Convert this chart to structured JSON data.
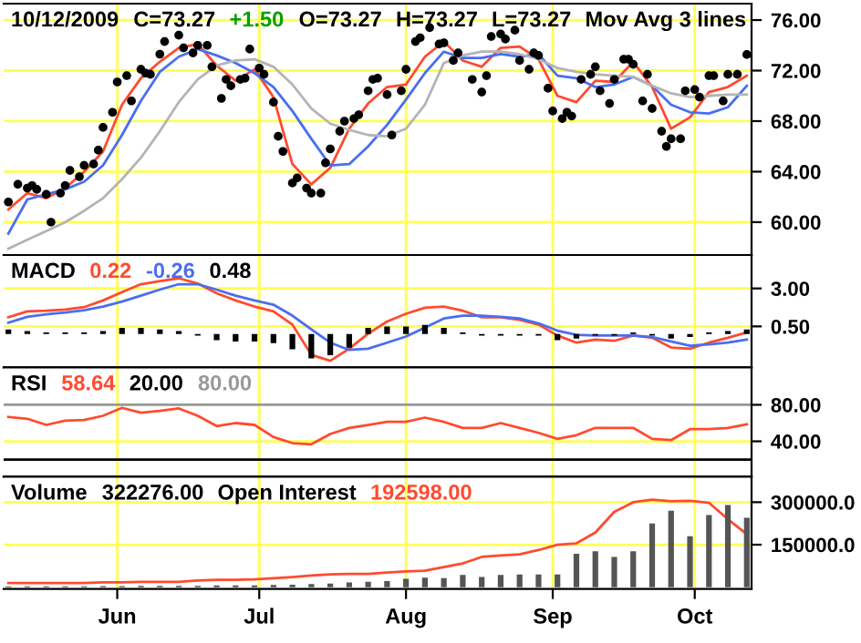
{
  "chart_data": [
    {
      "type": "scatter",
      "title": "10/12/2009",
      "annotations": [
        "C=73.27",
        "+1.50",
        "O=73.27",
        "H=73.27",
        "L=73.27",
        "Mov Avg 3 lines"
      ],
      "x": [
        "2009-05-09",
        "2009-05-13",
        "2009-05-17",
        "2009-05-21",
        "2009-05-25",
        "2009-05-29",
        "2009-06-02",
        "2009-06-06",
        "2009-06-10",
        "2009-06-14",
        "2009-06-18",
        "2009-06-22",
        "2009-06-26",
        "2009-06-30",
        "2009-07-04",
        "2009-07-08",
        "2009-07-12",
        "2009-07-16",
        "2009-07-20",
        "2009-07-24",
        "2009-07-28",
        "2009-08-01",
        "2009-08-05",
        "2009-08-09",
        "2009-08-13",
        "2009-08-17",
        "2009-08-21",
        "2009-08-25",
        "2009-08-29",
        "2009-09-02",
        "2009-09-06",
        "2009-09-10",
        "2009-09-14",
        "2009-09-18",
        "2009-09-22",
        "2009-09-26",
        "2009-09-30",
        "2009-10-04",
        "2009-10-08",
        "2009-10-12"
      ],
      "series": [
        {
          "color": "#000000",
          "marker": "circle",
          "x": [
            "2009-05-09",
            "2009-05-11",
            "2009-05-13",
            "2009-05-14",
            "2009-05-15",
            "2009-05-17",
            "2009-05-18",
            "2009-05-20",
            "2009-05-21",
            "2009-05-22",
            "2009-05-24",
            "2009-05-25",
            "2009-05-27",
            "2009-05-28",
            "2009-05-29",
            "2009-05-31",
            "2009-06-01",
            "2009-06-03",
            "2009-06-04",
            "2009-06-06",
            "2009-06-07",
            "2009-06-08",
            "2009-06-10",
            "2009-06-11",
            "2009-06-14",
            "2009-06-15",
            "2009-06-17",
            "2009-06-18",
            "2009-06-20",
            "2009-06-21",
            "2009-06-23",
            "2009-06-24",
            "2009-06-25",
            "2009-06-27",
            "2009-06-28",
            "2009-06-29",
            "2009-07-01",
            "2009-07-02",
            "2009-07-04",
            "2009-07-05",
            "2009-07-06",
            "2009-07-08",
            "2009-07-09",
            "2009-07-11",
            "2009-07-12",
            "2009-07-14",
            "2009-07-15",
            "2009-07-16",
            "2009-07-18",
            "2009-07-19",
            "2009-07-21",
            "2009-07-22",
            "2009-07-24",
            "2009-07-25",
            "2009-07-26",
            "2009-07-28",
            "2009-07-29",
            "2009-07-31",
            "2009-08-01",
            "2009-08-03",
            "2009-08-04",
            "2009-08-06",
            "2009-08-08",
            "2009-08-09",
            "2009-08-11",
            "2009-08-12",
            "2009-08-15",
            "2009-08-17",
            "2009-08-18",
            "2009-08-19",
            "2009-08-21",
            "2009-08-22",
            "2009-08-24",
            "2009-08-25",
            "2009-08-27",
            "2009-08-28",
            "2009-08-29",
            "2009-08-31",
            "2009-09-01",
            "2009-09-03",
            "2009-09-04",
            "2009-09-05",
            "2009-09-07",
            "2009-09-09",
            "2009-09-10",
            "2009-09-11",
            "2009-09-13",
            "2009-09-14",
            "2009-09-16",
            "2009-09-17",
            "2009-09-18",
            "2009-09-20",
            "2009-09-21",
            "2009-09-22",
            "2009-09-24",
            "2009-09-25",
            "2009-09-26",
            "2009-09-28",
            "2009-09-29",
            "2009-10-01",
            "2009-10-02",
            "2009-10-04",
            "2009-10-05",
            "2009-10-07",
            "2009-10-08",
            "2009-10-10",
            "2009-10-12"
          ],
          "values": [
            61.6,
            63.0,
            62.7,
            62.9,
            62.6,
            62.2,
            60.0,
            62.3,
            62.9,
            64.1,
            63.6,
            64.5,
            64.6,
            65.7,
            67.5,
            68.7,
            71.1,
            71.6,
            69.6,
            72.1,
            71.8,
            71.7,
            73.3,
            74.3,
            74.8,
            73.8,
            73.4,
            74.0,
            74.0,
            72.3,
            69.8,
            71.3,
            70.8,
            71.3,
            71.4,
            73.7,
            72.2,
            71.7,
            69.5,
            66.8,
            65.6,
            63.1,
            63.5,
            62.7,
            62.3,
            62.3,
            64.7,
            65.8,
            67.2,
            68.0,
            68.2,
            68.5,
            70.4,
            71.3,
            71.4,
            70.1,
            66.9,
            70.4,
            72.1,
            74.3,
            74.6,
            75.4,
            74.1,
            74.2,
            72.8,
            73.4,
            71.3,
            70.3,
            71.6,
            74.7,
            74.9,
            74.5,
            75.2,
            72.8,
            72.1,
            73.4,
            73.2,
            70.6,
            68.8,
            68.2,
            68.7,
            68.4,
            71.3,
            71.7,
            72.3,
            70.4,
            69.4,
            71.3,
            72.9,
            72.9,
            72.5,
            69.6,
            71.7,
            69.0,
            67.2,
            66.0,
            66.6,
            66.6,
            70.4,
            70.5,
            69.9,
            71.6,
            71.6,
            69.6,
            71.7,
            71.7,
            73.27
          ]
        },
        {
          "type": "line",
          "color": "#ff4b2e",
          "values": [
            61.0,
            62.3,
            61.9,
            62.7,
            64.0,
            65.6,
            69.3,
            71.4,
            72.7,
            73.8,
            74.1,
            72.4,
            71.2,
            72.1,
            69.9,
            64.6,
            63.0,
            64.3,
            67.4,
            69.4,
            70.7,
            70.9,
            73.1,
            74.3,
            72.8,
            72.3,
            73.8,
            73.9,
            72.9,
            70.0,
            69.5,
            71.2,
            71.1,
            72.7,
            70.7,
            67.4,
            68.3,
            70.3,
            70.7,
            71.6
          ]
        },
        {
          "type": "line",
          "color": "#4a6ef0",
          "values": [
            59.1,
            61.8,
            62.2,
            62.6,
            63.2,
            64.5,
            66.9,
            69.6,
            71.9,
            73.1,
            73.7,
            73.2,
            72.6,
            71.8,
            70.7,
            68.8,
            66.6,
            64.5,
            64.6,
            66.0,
            67.7,
            69.7,
            71.8,
            73.5,
            73.0,
            73.0,
            73.3,
            73.1,
            73.3,
            71.6,
            71.4,
            70.7,
            70.9,
            71.5,
            70.8,
            69.3,
            68.7,
            68.6,
            69.1,
            70.8
          ]
        },
        {
          "type": "line",
          "color": "#b4b4b4",
          "values": [
            57.9,
            58.6,
            59.3,
            60.0,
            60.9,
            61.9,
            63.4,
            65.1,
            67.2,
            69.5,
            71.3,
            72.4,
            72.8,
            72.9,
            72.3,
            70.9,
            69.0,
            67.8,
            67.3,
            66.9,
            66.8,
            67.4,
            69.3,
            72.6,
            73.2,
            73.5,
            73.5,
            73.3,
            72.9,
            72.2,
            71.9,
            71.7,
            71.6,
            71.5,
            70.8,
            70.2,
            69.9,
            70.0,
            70.1,
            70.1
          ]
        }
      ],
      "xlim": [
        "2009-05-08",
        "2009-10-13"
      ],
      "ylim": [
        57.4,
        77.3
      ],
      "xticks": [
        {
          "value": "2009-06-01",
          "label": null
        },
        {
          "value": "2009-07-01",
          "label": null
        },
        {
          "value": "2009-08-01",
          "label": null
        },
        {
          "value": "2009-09-01",
          "label": null
        },
        {
          "value": "2009-10-01",
          "label": null
        }
      ],
      "yticks": [
        {
          "value": 60,
          "label": "60.00"
        },
        {
          "value": 64,
          "label": "64.00"
        },
        {
          "value": 68,
          "label": "68.00"
        },
        {
          "value": 72,
          "label": "72.00"
        },
        {
          "value": 76,
          "label": "76.00"
        }
      ],
      "tick_labels": "y",
      "grid": true
    },
    {
      "type": "line",
      "title": "MACD",
      "annotations": [
        "0.22",
        "-0.26",
        "0.48"
      ],
      "x": [
        "2009-05-09",
        "2009-05-13",
        "2009-05-17",
        "2009-05-21",
        "2009-05-25",
        "2009-05-29",
        "2009-06-02",
        "2009-06-06",
        "2009-06-10",
        "2009-06-14",
        "2009-06-18",
        "2009-06-22",
        "2009-06-26",
        "2009-06-30",
        "2009-07-04",
        "2009-07-08",
        "2009-07-12",
        "2009-07-16",
        "2009-07-20",
        "2009-07-24",
        "2009-07-28",
        "2009-08-01",
        "2009-08-05",
        "2009-08-09",
        "2009-08-13",
        "2009-08-17",
        "2009-08-21",
        "2009-08-25",
        "2009-08-29",
        "2009-09-02",
        "2009-09-06",
        "2009-09-10",
        "2009-09-14",
        "2009-09-18",
        "2009-09-22",
        "2009-09-26",
        "2009-09-30",
        "2009-10-04",
        "2009-10-08",
        "2009-10-12"
      ],
      "series": [
        {
          "color": "#ff4b2e",
          "values": [
            1.1,
            1.49,
            1.53,
            1.61,
            1.77,
            2.21,
            2.76,
            3.28,
            3.48,
            3.67,
            3.32,
            2.68,
            2.21,
            1.81,
            1.49,
            0.62,
            -1.37,
            -1.76,
            -0.97,
            0.02,
            0.82,
            1.33,
            1.73,
            1.81,
            1.53,
            1.1,
            1.1,
            0.94,
            0.62,
            -0.1,
            -0.57,
            -0.37,
            -0.45,
            -0.1,
            -0.25,
            -0.89,
            -0.97,
            -0.57,
            -0.25,
            0.1
          ]
        },
        {
          "color": "#4a6ef0",
          "values": [
            0.74,
            1.13,
            1.29,
            1.41,
            1.57,
            1.81,
            2.13,
            2.52,
            2.92,
            3.28,
            3.28,
            2.92,
            2.52,
            2.21,
            1.93,
            1.21,
            0.3,
            -0.57,
            -1.05,
            -0.97,
            -0.57,
            -0.17,
            0.42,
            1.02,
            1.21,
            1.21,
            1.13,
            1.02,
            0.7,
            0.22,
            -0.06,
            -0.1,
            -0.1,
            -0.1,
            -0.21,
            -0.49,
            -0.77,
            -0.69,
            -0.57,
            -0.37
          ]
        },
        {
          "type": "bar",
          "color": "#000000",
          "values": [
            0.3,
            0.2,
            0.1,
            0.1,
            0.1,
            0.2,
            0.4,
            0.4,
            0.3,
            0.2,
            -0.1,
            -0.4,
            -0.5,
            -0.5,
            -0.6,
            -1.0,
            -1.6,
            -1.4,
            -0.9,
            0.4,
            0.5,
            0.5,
            0.6,
            0.4,
            0.1,
            -0.1,
            -0.1,
            -0.1,
            -0.1,
            -0.4,
            -0.3,
            -0.1,
            -0.1,
            0.1,
            -0.1,
            -0.3,
            -0.2,
            0.1,
            0.2,
            0.3
          ]
        }
      ],
      "xlim": [
        "2009-05-08",
        "2009-10-13"
      ],
      "ylim": [
        -2.2,
        5.2
      ],
      "xticks": [
        {
          "value": "2009-06-01",
          "label": null
        },
        {
          "value": "2009-07-01",
          "label": null
        },
        {
          "value": "2009-08-01",
          "label": null
        },
        {
          "value": "2009-09-01",
          "label": null
        },
        {
          "value": "2009-10-01",
          "label": null
        }
      ],
      "yticks": [
        {
          "value": 0.5,
          "label": "0.50"
        },
        {
          "value": 3,
          "label": "3.00"
        }
      ],
      "tick_labels": "y",
      "grid": true
    },
    {
      "type": "line",
      "title": "RSI",
      "annotations": [
        "58.64"
      ],
      "x": [
        "2009-05-09",
        "2009-05-13",
        "2009-05-17",
        "2009-05-21",
        "2009-05-25",
        "2009-05-29",
        "2009-06-02",
        "2009-06-06",
        "2009-06-10",
        "2009-06-14",
        "2009-06-18",
        "2009-06-22",
        "2009-06-26",
        "2009-06-30",
        "2009-07-04",
        "2009-07-08",
        "2009-07-12",
        "2009-07-16",
        "2009-07-20",
        "2009-07-24",
        "2009-07-28",
        "2009-08-01",
        "2009-08-05",
        "2009-08-09",
        "2009-08-13",
        "2009-08-17",
        "2009-08-21",
        "2009-08-25",
        "2009-08-29",
        "2009-09-02",
        "2009-09-06",
        "2009-09-10",
        "2009-09-14",
        "2009-09-18",
        "2009-09-22",
        "2009-09-26",
        "2009-09-30",
        "2009-10-04",
        "2009-10-08",
        "2009-10-12"
      ],
      "series": [
        {
          "color": "#ff4b2e",
          "values": [
            66.7,
            64.7,
            58.0,
            62.7,
            63.3,
            68.0,
            76.7,
            71.3,
            73.3,
            76.0,
            68.0,
            56.7,
            60.0,
            58.0,
            44.7,
            38.0,
            36.7,
            48.0,
            54.7,
            58.0,
            61.3,
            61.3,
            66.0,
            61.3,
            54.7,
            54.7,
            60.0,
            54.7,
            49.3,
            42.7,
            46.7,
            54.7,
            54.7,
            54.7,
            42.7,
            41.3,
            53.3,
            53.3,
            54.7,
            58.64
          ]
        }
      ],
      "ref_lines": [
        {
          "axis": "y",
          "value": 20,
          "label": "20.00",
          "color": "#000000"
        },
        {
          "axis": "y",
          "value": 80,
          "label": "80.00",
          "color": "#999999"
        }
      ],
      "xlim": [
        "2009-05-08",
        "2009-10-13"
      ],
      "ylim": [
        1.2,
        121
      ],
      "xticks": [
        {
          "value": "2009-06-01",
          "label": null
        },
        {
          "value": "2009-07-01",
          "label": null
        },
        {
          "value": "2009-08-01",
          "label": null
        },
        {
          "value": "2009-09-01",
          "label": null
        },
        {
          "value": "2009-10-01",
          "label": null
        }
      ],
      "yticks": [
        {
          "value": 40,
          "label": "40.00"
        },
        {
          "value": 80,
          "label": "80.00"
        }
      ],
      "tick_labels": "y",
      "grid": true
    },
    {
      "type": "bar",
      "title": "Volume",
      "annotations": [
        "322276.00",
        "Open Interest",
        "192598.00"
      ],
      "x": [
        "2009-05-09",
        "2009-05-13",
        "2009-05-17",
        "2009-05-21",
        "2009-05-25",
        "2009-05-29",
        "2009-06-02",
        "2009-06-06",
        "2009-06-10",
        "2009-06-14",
        "2009-06-18",
        "2009-06-22",
        "2009-06-26",
        "2009-06-30",
        "2009-07-04",
        "2009-07-08",
        "2009-07-12",
        "2009-07-16",
        "2009-07-20",
        "2009-07-24",
        "2009-07-28",
        "2009-08-01",
        "2009-08-05",
        "2009-08-09",
        "2009-08-13",
        "2009-08-17",
        "2009-08-21",
        "2009-08-25",
        "2009-08-29",
        "2009-09-02",
        "2009-09-06",
        "2009-09-10",
        "2009-09-14",
        "2009-09-18",
        "2009-09-22",
        "2009-09-26",
        "2009-09-30",
        "2009-10-04",
        "2009-10-08",
        "2009-10-12"
      ],
      "series": [
        {
          "color": "#555555",
          "values": [
            3000,
            3000,
            3000,
            3000,
            3000,
            4000,
            4000,
            5000,
            5000,
            5000,
            5000,
            6000,
            6000,
            6000,
            8000,
            9000,
            11000,
            13000,
            17000,
            19000,
            22000,
            30000,
            34000,
            32000,
            43000,
            36000,
            43000,
            45000,
            45000,
            45000,
            118000,
            127000,
            107000,
            127000,
            225000,
            270000,
            180000,
            255000,
            290000,
            245000
          ]
        },
        {
          "type": "line",
          "color": "#ff4b2e",
          "values": [
            15000,
            15000,
            15000,
            15000,
            15000,
            17000,
            17000,
            19000,
            19000,
            19000,
            24000,
            26000,
            26000,
            28000,
            32000,
            36000,
            41000,
            45000,
            47000,
            47000,
            52000,
            56000,
            58000,
            71000,
            84000,
            107000,
            112000,
            116000,
            131000,
            150000,
            155000,
            193000,
            266000,
            300000,
            309000,
            303000,
            305000,
            298000,
            240000,
            187000
          ]
        }
      ],
      "xlim": [
        "2009-05-08",
        "2009-10-13"
      ],
      "ylim": [
        -6000,
        390000
      ],
      "xticks": [
        {
          "value": "2009-06-01",
          "label": "Jun"
        },
        {
          "value": "2009-07-01",
          "label": "Jul"
        },
        {
          "value": "2009-08-01",
          "label": "Aug"
        },
        {
          "value": "2009-09-01",
          "label": "Sep"
        },
        {
          "value": "2009-10-01",
          "label": "Oct"
        }
      ],
      "yticks": [
        {
          "value": 150000,
          "label": "150000.0"
        },
        {
          "value": 300000,
          "label": "300000.0"
        }
      ],
      "grid": true
    }
  ]
}
